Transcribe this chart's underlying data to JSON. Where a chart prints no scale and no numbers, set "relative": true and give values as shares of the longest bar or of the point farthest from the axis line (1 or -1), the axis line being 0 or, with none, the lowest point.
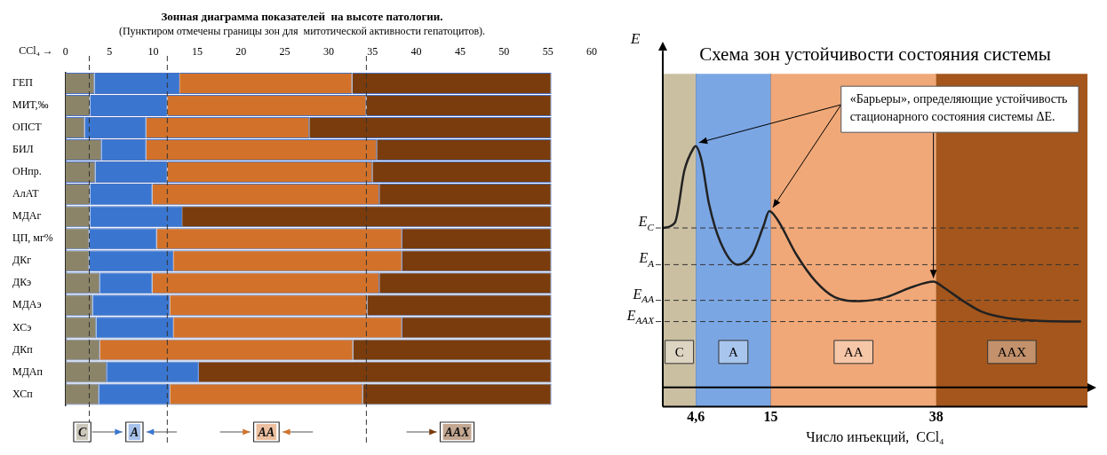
{
  "chart_data": [
    {
      "type": "bar",
      "orientation": "horizontal",
      "stacked": true,
      "title": "Зонная диаграмма показателей  на высоте патологии.",
      "subtitle": "(Пунктиром отмечены границы зон для  митотической активности гепатоцитов).",
      "xlabel": "CCl₄ →",
      "categories": [
        "ГЕП",
        "МИТ,‰",
        "ОПСТ",
        "БИЛ",
        "ОНпр.",
        "АлАТ",
        "МДАг",
        "ЦП, мг%",
        "ДКг",
        "ДКэ",
        "МДАэ",
        "ХСэ",
        "ДКп",
        "МДАп",
        "ХСп"
      ],
      "series": [
        {
          "name": "C",
          "color": "#8c8468",
          "values": [
            3.3,
            2.8,
            2.2,
            4.1,
            3.4,
            2.8,
            2.8,
            2.7,
            2.7,
            3.9,
            3.1,
            3.5,
            3.9,
            4.7,
            3.8
          ]
        },
        {
          "name": "A",
          "color": "#3a76d0",
          "values": [
            9.7,
            8.8,
            7.0,
            5.1,
            8.2,
            7.1,
            10.5,
            7.7,
            9.6,
            6.0,
            8.8,
            8.8,
            0,
            10.5,
            8.1
          ]
        },
        {
          "name": "AA",
          "color": "#d2722a",
          "values": [
            19.7,
            22.7,
            18.6,
            26.3,
            23.4,
            25.9,
            0,
            28.0,
            26.1,
            25.9,
            22.5,
            26.1,
            28.9,
            0,
            22.0
          ]
        },
        {
          "name": "AAX",
          "color": "#7a3c0c",
          "values": [
            22.7,
            21.1,
            27.6,
            19.9,
            20.4,
            19.6,
            42.1,
            17.0,
            17.0,
            19.6,
            21.0,
            17.0,
            22.6,
            40.2,
            21.5
          ]
        }
      ],
      "xlim": [
        0,
        60
      ],
      "xticks": [
        0,
        5,
        10,
        15,
        20,
        25,
        30,
        35,
        40,
        45,
        50,
        55,
        60
      ],
      "ref_lines": [
        {
          "axis": "x",
          "value": 2.7,
          "line_style": "dashed"
        },
        {
          "axis": "x",
          "value": 11.6,
          "line_style": "dashed"
        },
        {
          "axis": "x",
          "value": 34.3,
          "line_style": "dashed"
        }
      ],
      "legend": "bottom"
    },
    {
      "type": "line",
      "relative": true,
      "title": "Схема зон устойчивости состояния системы",
      "xlabel": "Число инъекций,  CCl₄",
      "ylabel": "E",
      "grid": "x",
      "xlim": [
        0,
        59
      ],
      "xticks": [
        {
          "value": 4.6,
          "label": "4,6"
        },
        15,
        38
      ],
      "series": [
        {
          "color": "#222222",
          "marker": "none",
          "x": [
            0.1,
            1.7,
            3.0,
            4.3,
            4.55,
            5.4,
            6.4,
            8.0,
            10.4,
            12.4,
            14.0,
            14.8,
            15.9,
            18.6,
            21.2,
            23.9,
            27.4,
            31.0,
            34.5,
            37.6,
            39.0,
            41.6,
            44.3,
            47.9,
            52.3,
            58.1
          ],
          "values": [
            0.661,
            0.684,
            0.899,
            0.993,
            1.0,
            0.939,
            0.764,
            0.603,
            0.509,
            0.549,
            0.67,
            0.731,
            0.697,
            0.549,
            0.441,
            0.374,
            0.358,
            0.374,
            0.415,
            0.439,
            0.415,
            0.361,
            0.314,
            0.287,
            0.276,
            0.273
          ]
        }
      ],
      "ref_lines": [
        {
          "axis": "y",
          "value": 0.661,
          "label": "E$_{C}$",
          "line_style": "dashed"
        },
        {
          "axis": "y",
          "value": 0.509,
          "label": "E$_{A}$",
          "line_style": "dashed"
        },
        {
          "axis": "y",
          "value": 0.361,
          "label": "E$_{AA}$",
          "line_style": "dashed"
        },
        {
          "axis": "y",
          "value": 0.273,
          "label": "E$_{AAX}$",
          "line_style": "dashed"
        }
      ],
      "bands": [
        {
          "axis": "x",
          "from": 0,
          "to": 4.6,
          "label": "C",
          "color": "#cbbfa2"
        },
        {
          "axis": "x",
          "from": 4.6,
          "to": 15,
          "label": "A",
          "color": "#7aa6e4"
        },
        {
          "axis": "x",
          "from": 15,
          "to": 38,
          "label": "AA",
          "color": "#f0a878"
        },
        {
          "axis": "x",
          "from": 38,
          "to": 59,
          "label": "AAX",
          "color": "#a4561c"
        }
      ],
      "annotations": [
        "«Барьеры», определяющие устойчивость стационарного состояния системы ΔE."
      ]
    }
  ]
}
